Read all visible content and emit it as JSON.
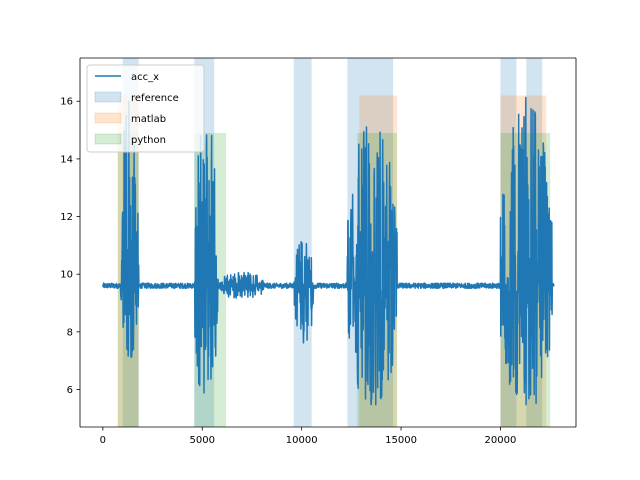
{
  "chart_data": {
    "type": "line",
    "title": "",
    "xlabel": "",
    "ylabel": "",
    "xlim": [
      -1150,
      23800
    ],
    "ylim": [
      4.7,
      17.5
    ],
    "xticks": [
      0,
      5000,
      10000,
      15000,
      20000
    ],
    "xtick_labels": [
      "0",
      "5000",
      "10000",
      "15000",
      "20000"
    ],
    "yticks": [
      6,
      8,
      10,
      12,
      14,
      16
    ],
    "ytick_labels": [
      "6",
      "8",
      "10",
      "12",
      "14",
      "16"
    ],
    "grid": false,
    "legend_position": "upper left",
    "series": [
      {
        "name": "acc_x",
        "type": "line",
        "color": "#1f77b4",
        "baseline": 9.6,
        "x_range": [
          0,
          22700
        ],
        "active_segments": [
          {
            "x": [
              900,
              1800
            ],
            "y_min": 6.8,
            "y_max": 16.3
          },
          {
            "x": [
              4600,
              5800
            ],
            "y_min": 5.3,
            "y_max": 16.5
          },
          {
            "x": [
              5900,
              8100
            ],
            "y_min": 9.1,
            "y_max": 10.1
          },
          {
            "x": [
              9600,
              10600
            ],
            "y_min": 7.5,
            "y_max": 11.3
          },
          {
            "x": [
              12300,
              14800
            ],
            "y_min": 5.2,
            "y_max": 15.4
          },
          {
            "x": [
              20000,
              22600
            ],
            "y_min": 5.2,
            "y_max": 16.2
          }
        ]
      }
    ],
    "spans": [
      {
        "name": "reference",
        "color": "#1f77b4",
        "alpha": 0.2,
        "regions": [
          {
            "x": [
              1000,
              1800
            ],
            "y": [
              4.7,
              17.5
            ]
          },
          {
            "x": [
              4600,
              5600
            ],
            "y": [
              4.7,
              17.5
            ]
          },
          {
            "x": [
              9600,
              10500
            ],
            "y": [
              4.7,
              17.5
            ]
          },
          {
            "x": [
              12300,
              14600
            ],
            "y": [
              4.7,
              17.5
            ]
          },
          {
            "x": [
              20000,
              20800
            ],
            "y": [
              4.7,
              17.5
            ]
          },
          {
            "x": [
              21300,
              22100
            ],
            "y": [
              4.7,
              17.5
            ]
          }
        ]
      },
      {
        "name": "matlab",
        "color": "#ff7f0e",
        "alpha": 0.2,
        "regions": [
          {
            "x": [
              750,
              1800
            ],
            "y": [
              4.7,
              16.2
            ]
          },
          {
            "x": [
              12900,
              14800
            ],
            "y": [
              4.7,
              16.2
            ]
          },
          {
            "x": [
              20000,
              22300
            ],
            "y": [
              4.7,
              16.2
            ]
          }
        ]
      },
      {
        "name": "python",
        "color": "#2ca02c",
        "alpha": 0.2,
        "regions": [
          {
            "x": [
              750,
              1800
            ],
            "y": [
              4.7,
              14.9
            ]
          },
          {
            "x": [
              4600,
              6200
            ],
            "y": [
              4.7,
              14.9
            ]
          },
          {
            "x": [
              12800,
              14800
            ],
            "y": [
              4.7,
              14.9
            ]
          },
          {
            "x": [
              20000,
              22500
            ],
            "y": [
              4.7,
              14.9
            ]
          }
        ]
      }
    ],
    "legend": [
      {
        "label": "acc_x",
        "kind": "line",
        "color": "#1f77b4"
      },
      {
        "label": "reference",
        "kind": "patch",
        "color": "#1f77b4"
      },
      {
        "label": "matlab",
        "kind": "patch",
        "color": "#ff7f0e"
      },
      {
        "label": "python",
        "kind": "patch",
        "color": "#2ca02c"
      }
    ]
  }
}
